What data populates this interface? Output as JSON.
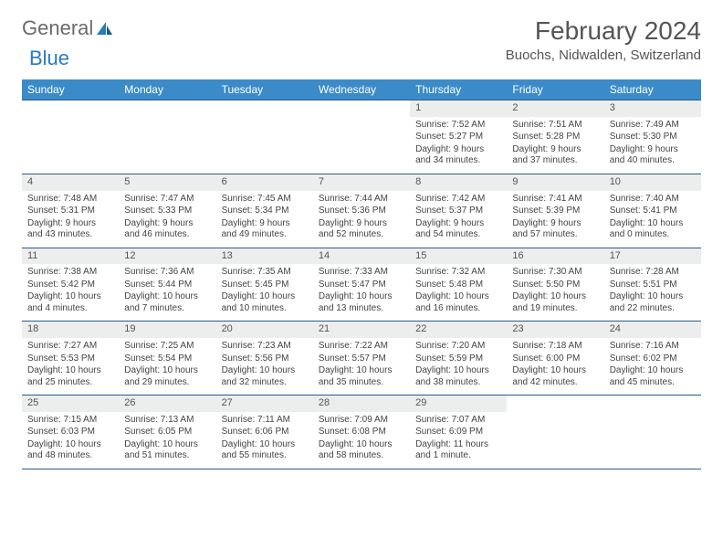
{
  "brand": {
    "part1": "General",
    "part2": "Blue"
  },
  "title": "February 2024",
  "location": "Buochs, Nidwalden, Switzerland",
  "colors": {
    "header_bg": "#3b8bc9",
    "header_text": "#ffffff",
    "row_border": "#2b5a8a",
    "daynum_bg": "#eceded",
    "body_text": "#444444",
    "title_text": "#555555",
    "logo_gray": "#6a6a6a",
    "logo_blue": "#2b7ac0"
  },
  "weekdays": [
    "Sunday",
    "Monday",
    "Tuesday",
    "Wednesday",
    "Thursday",
    "Friday",
    "Saturday"
  ],
  "weeks": [
    [
      {
        "n": "",
        "sunrise": "",
        "sunset": "",
        "daylight": ""
      },
      {
        "n": "",
        "sunrise": "",
        "sunset": "",
        "daylight": ""
      },
      {
        "n": "",
        "sunrise": "",
        "sunset": "",
        "daylight": ""
      },
      {
        "n": "",
        "sunrise": "",
        "sunset": "",
        "daylight": ""
      },
      {
        "n": "1",
        "sunrise": "Sunrise: 7:52 AM",
        "sunset": "Sunset: 5:27 PM",
        "daylight": "Daylight: 9 hours and 34 minutes."
      },
      {
        "n": "2",
        "sunrise": "Sunrise: 7:51 AM",
        "sunset": "Sunset: 5:28 PM",
        "daylight": "Daylight: 9 hours and 37 minutes."
      },
      {
        "n": "3",
        "sunrise": "Sunrise: 7:49 AM",
        "sunset": "Sunset: 5:30 PM",
        "daylight": "Daylight: 9 hours and 40 minutes."
      }
    ],
    [
      {
        "n": "4",
        "sunrise": "Sunrise: 7:48 AM",
        "sunset": "Sunset: 5:31 PM",
        "daylight": "Daylight: 9 hours and 43 minutes."
      },
      {
        "n": "5",
        "sunrise": "Sunrise: 7:47 AM",
        "sunset": "Sunset: 5:33 PM",
        "daylight": "Daylight: 9 hours and 46 minutes."
      },
      {
        "n": "6",
        "sunrise": "Sunrise: 7:45 AM",
        "sunset": "Sunset: 5:34 PM",
        "daylight": "Daylight: 9 hours and 49 minutes."
      },
      {
        "n": "7",
        "sunrise": "Sunrise: 7:44 AM",
        "sunset": "Sunset: 5:36 PM",
        "daylight": "Daylight: 9 hours and 52 minutes."
      },
      {
        "n": "8",
        "sunrise": "Sunrise: 7:42 AM",
        "sunset": "Sunset: 5:37 PM",
        "daylight": "Daylight: 9 hours and 54 minutes."
      },
      {
        "n": "9",
        "sunrise": "Sunrise: 7:41 AM",
        "sunset": "Sunset: 5:39 PM",
        "daylight": "Daylight: 9 hours and 57 minutes."
      },
      {
        "n": "10",
        "sunrise": "Sunrise: 7:40 AM",
        "sunset": "Sunset: 5:41 PM",
        "daylight": "Daylight: 10 hours and 0 minutes."
      }
    ],
    [
      {
        "n": "11",
        "sunrise": "Sunrise: 7:38 AM",
        "sunset": "Sunset: 5:42 PM",
        "daylight": "Daylight: 10 hours and 4 minutes."
      },
      {
        "n": "12",
        "sunrise": "Sunrise: 7:36 AM",
        "sunset": "Sunset: 5:44 PM",
        "daylight": "Daylight: 10 hours and 7 minutes."
      },
      {
        "n": "13",
        "sunrise": "Sunrise: 7:35 AM",
        "sunset": "Sunset: 5:45 PM",
        "daylight": "Daylight: 10 hours and 10 minutes."
      },
      {
        "n": "14",
        "sunrise": "Sunrise: 7:33 AM",
        "sunset": "Sunset: 5:47 PM",
        "daylight": "Daylight: 10 hours and 13 minutes."
      },
      {
        "n": "15",
        "sunrise": "Sunrise: 7:32 AM",
        "sunset": "Sunset: 5:48 PM",
        "daylight": "Daylight: 10 hours and 16 minutes."
      },
      {
        "n": "16",
        "sunrise": "Sunrise: 7:30 AM",
        "sunset": "Sunset: 5:50 PM",
        "daylight": "Daylight: 10 hours and 19 minutes."
      },
      {
        "n": "17",
        "sunrise": "Sunrise: 7:28 AM",
        "sunset": "Sunset: 5:51 PM",
        "daylight": "Daylight: 10 hours and 22 minutes."
      }
    ],
    [
      {
        "n": "18",
        "sunrise": "Sunrise: 7:27 AM",
        "sunset": "Sunset: 5:53 PM",
        "daylight": "Daylight: 10 hours and 25 minutes."
      },
      {
        "n": "19",
        "sunrise": "Sunrise: 7:25 AM",
        "sunset": "Sunset: 5:54 PM",
        "daylight": "Daylight: 10 hours and 29 minutes."
      },
      {
        "n": "20",
        "sunrise": "Sunrise: 7:23 AM",
        "sunset": "Sunset: 5:56 PM",
        "daylight": "Daylight: 10 hours and 32 minutes."
      },
      {
        "n": "21",
        "sunrise": "Sunrise: 7:22 AM",
        "sunset": "Sunset: 5:57 PM",
        "daylight": "Daylight: 10 hours and 35 minutes."
      },
      {
        "n": "22",
        "sunrise": "Sunrise: 7:20 AM",
        "sunset": "Sunset: 5:59 PM",
        "daylight": "Daylight: 10 hours and 38 minutes."
      },
      {
        "n": "23",
        "sunrise": "Sunrise: 7:18 AM",
        "sunset": "Sunset: 6:00 PM",
        "daylight": "Daylight: 10 hours and 42 minutes."
      },
      {
        "n": "24",
        "sunrise": "Sunrise: 7:16 AM",
        "sunset": "Sunset: 6:02 PM",
        "daylight": "Daylight: 10 hours and 45 minutes."
      }
    ],
    [
      {
        "n": "25",
        "sunrise": "Sunrise: 7:15 AM",
        "sunset": "Sunset: 6:03 PM",
        "daylight": "Daylight: 10 hours and 48 minutes."
      },
      {
        "n": "26",
        "sunrise": "Sunrise: 7:13 AM",
        "sunset": "Sunset: 6:05 PM",
        "daylight": "Daylight: 10 hours and 51 minutes."
      },
      {
        "n": "27",
        "sunrise": "Sunrise: 7:11 AM",
        "sunset": "Sunset: 6:06 PM",
        "daylight": "Daylight: 10 hours and 55 minutes."
      },
      {
        "n": "28",
        "sunrise": "Sunrise: 7:09 AM",
        "sunset": "Sunset: 6:08 PM",
        "daylight": "Daylight: 10 hours and 58 minutes."
      },
      {
        "n": "29",
        "sunrise": "Sunrise: 7:07 AM",
        "sunset": "Sunset: 6:09 PM",
        "daylight": "Daylight: 11 hours and 1 minute."
      },
      {
        "n": "",
        "sunrise": "",
        "sunset": "",
        "daylight": ""
      },
      {
        "n": "",
        "sunrise": "",
        "sunset": "",
        "daylight": ""
      }
    ]
  ]
}
